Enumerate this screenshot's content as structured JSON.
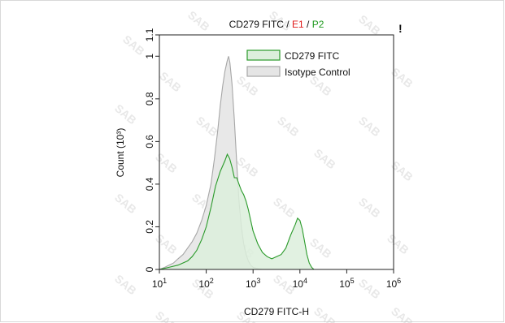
{
  "chart_data": {
    "type": "histogram",
    "title_parts": [
      {
        "text": "CD279 FITC",
        "color": "#111111"
      },
      {
        "text": " / ",
        "color": "#111111"
      },
      {
        "text": "E1",
        "color": "#e11b1b"
      },
      {
        "text": " / ",
        "color": "#111111"
      },
      {
        "text": "P2",
        "color": "#1f9a1f"
      }
    ],
    "marker": "!",
    "xlabel": "CD279 FITC-H",
    "ylabel": "Count (10³)",
    "x_scale": "log",
    "xlim": [
      10,
      1000000
    ],
    "ylim": [
      0,
      1.1
    ],
    "x_ticks": [
      {
        "base": "10",
        "exp": "1",
        "value": 10
      },
      {
        "base": "10",
        "exp": "2",
        "value": 100
      },
      {
        "base": "10",
        "exp": "3",
        "value": 1000
      },
      {
        "base": "10",
        "exp": "4",
        "value": 10000
      },
      {
        "base": "10",
        "exp": "5",
        "value": 100000
      },
      {
        "base": "10",
        "exp": "6",
        "value": 1000000
      }
    ],
    "y_ticks": [
      {
        "label": "0",
        "value": 0
      },
      {
        "label": "0.2",
        "value": 0.2
      },
      {
        "label": "0.4",
        "value": 0.4
      },
      {
        "label": "0.6",
        "value": 0.6
      },
      {
        "label": "0.8",
        "value": 0.8
      },
      {
        "label": "1",
        "value": 1.0
      },
      {
        "label": "1.1",
        "value": 1.1
      }
    ],
    "legend_position": "top-right",
    "series": [
      {
        "name": "Isotype Control",
        "stroke": "#a6a6a6",
        "fill": "#e5e5e5",
        "points": [
          [
            10,
            0.0
          ],
          [
            13,
            0.01
          ],
          [
            16,
            0.02
          ],
          [
            20,
            0.03
          ],
          [
            25,
            0.05
          ],
          [
            32,
            0.07
          ],
          [
            40,
            0.1
          ],
          [
            50,
            0.13
          ],
          [
            63,
            0.17
          ],
          [
            80,
            0.23
          ],
          [
            100,
            0.3
          ],
          [
            126,
            0.4
          ],
          [
            150,
            0.52
          ],
          [
            178,
            0.66
          ],
          [
            200,
            0.77
          ],
          [
            224,
            0.86
          ],
          [
            251,
            0.93
          ],
          [
            282,
            0.98
          ],
          [
            300,
            1.0
          ],
          [
            320,
            0.97
          ],
          [
            355,
            0.87
          ],
          [
            398,
            0.7
          ],
          [
            447,
            0.5
          ],
          [
            500,
            0.32
          ],
          [
            562,
            0.2
          ],
          [
            631,
            0.12
          ],
          [
            708,
            0.07
          ],
          [
            794,
            0.04
          ],
          [
            891,
            0.02
          ],
          [
            1000,
            0.01
          ],
          [
            1259,
            0.003
          ],
          [
            1585,
            0.0
          ]
        ]
      },
      {
        "name": "CD279 FITC",
        "stroke": "#2a9a2a",
        "fill": "#dcefdc",
        "points": [
          [
            10,
            0.0
          ],
          [
            16,
            0.01
          ],
          [
            25,
            0.02
          ],
          [
            40,
            0.04
          ],
          [
            50,
            0.06
          ],
          [
            63,
            0.09
          ],
          [
            80,
            0.14
          ],
          [
            100,
            0.2
          ],
          [
            126,
            0.29
          ],
          [
            158,
            0.39
          ],
          [
            200,
            0.46
          ],
          [
            251,
            0.51
          ],
          [
            282,
            0.54
          ],
          [
            316,
            0.52
          ],
          [
            355,
            0.48
          ],
          [
            398,
            0.43
          ],
          [
            447,
            0.43
          ],
          [
            501,
            0.4
          ],
          [
            562,
            0.37
          ],
          [
            631,
            0.35
          ],
          [
            708,
            0.32
          ],
          [
            794,
            0.28
          ],
          [
            891,
            0.23
          ],
          [
            1000,
            0.18
          ],
          [
            1259,
            0.12
          ],
          [
            1585,
            0.08
          ],
          [
            2000,
            0.06
          ],
          [
            2512,
            0.05
          ],
          [
            3162,
            0.06
          ],
          [
            3981,
            0.07
          ],
          [
            5012,
            0.1
          ],
          [
            6310,
            0.16
          ],
          [
            7943,
            0.21
          ],
          [
            8913,
            0.24
          ],
          [
            10000,
            0.23
          ],
          [
            11220,
            0.19
          ],
          [
            12589,
            0.13
          ],
          [
            14125,
            0.07
          ],
          [
            15849,
            0.03
          ],
          [
            17783,
            0.01
          ],
          [
            20000,
            0.0
          ]
        ]
      }
    ],
    "watermark_text": "SAB"
  }
}
